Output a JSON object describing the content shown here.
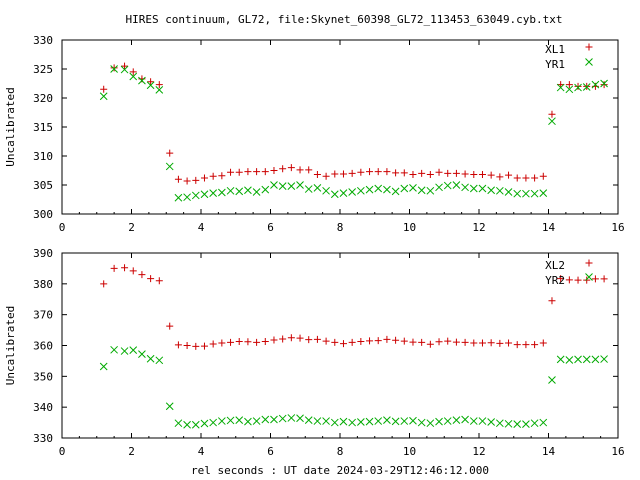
{
  "title": "HIRES continuum, GL72, file:Skynet_60398_GL72_113453_63049.cyb.txt",
  "xlabel": "rel seconds : UT date 2024-03-29T12:46:12.000",
  "colors": {
    "red": "#cc0000",
    "green": "#00aa00"
  },
  "chart_data": [
    {
      "type": "scatter",
      "ylabel": "Uncalibrated",
      "xlim": [
        0,
        16
      ],
      "ylim": [
        300,
        330
      ],
      "xticks": [
        0,
        2,
        4,
        6,
        8,
        10,
        12,
        14,
        16
      ],
      "yticks": [
        300,
        305,
        310,
        315,
        320,
        325,
        330
      ],
      "legend_position": "top-right",
      "series": [
        {
          "name": "XL1",
          "marker": "plus",
          "color": "#cc0000",
          "points": [
            [
              1.2,
              321.5
            ],
            [
              1.5,
              325.2
            ],
            [
              1.8,
              325.5
            ],
            [
              2.05,
              324.5
            ],
            [
              2.3,
              323.3
            ],
            [
              2.55,
              322.8
            ],
            [
              2.8,
              322.3
            ],
            [
              3.1,
              310.5
            ],
            [
              3.35,
              306.0
            ],
            [
              3.6,
              305.7
            ],
            [
              3.85,
              305.8
            ],
            [
              4.1,
              306.2
            ],
            [
              4.35,
              306.5
            ],
            [
              4.6,
              306.6
            ],
            [
              4.85,
              307.2
            ],
            [
              5.1,
              307.2
            ],
            [
              5.35,
              307.3
            ],
            [
              5.6,
              307.3
            ],
            [
              5.85,
              307.3
            ],
            [
              6.1,
              307.5
            ],
            [
              6.35,
              307.8
            ],
            [
              6.6,
              308.0
            ],
            [
              6.85,
              307.6
            ],
            [
              7.1,
              307.6
            ],
            [
              7.35,
              306.8
            ],
            [
              7.6,
              306.5
            ],
            [
              7.85,
              306.9
            ],
            [
              8.1,
              306.9
            ],
            [
              8.35,
              307.0
            ],
            [
              8.6,
              307.2
            ],
            [
              8.85,
              307.3
            ],
            [
              9.1,
              307.3
            ],
            [
              9.35,
              307.3
            ],
            [
              9.6,
              307.1
            ],
            [
              9.85,
              307.1
            ],
            [
              10.1,
              306.8
            ],
            [
              10.35,
              307.0
            ],
            [
              10.6,
              306.8
            ],
            [
              10.85,
              307.2
            ],
            [
              11.1,
              307.0
            ],
            [
              11.35,
              307.0
            ],
            [
              11.6,
              306.9
            ],
            [
              11.85,
              306.8
            ],
            [
              12.1,
              306.8
            ],
            [
              12.35,
              306.7
            ],
            [
              12.6,
              306.4
            ],
            [
              12.85,
              306.7
            ],
            [
              13.1,
              306.2
            ],
            [
              13.35,
              306.2
            ],
            [
              13.6,
              306.2
            ],
            [
              13.85,
              306.5
            ],
            [
              14.1,
              317.2
            ],
            [
              14.35,
              322.3
            ],
            [
              14.6,
              322.3
            ],
            [
              14.85,
              322.0
            ],
            [
              15.1,
              322.0
            ],
            [
              15.35,
              322.0
            ],
            [
              15.6,
              322.3
            ]
          ]
        },
        {
          "name": "YR1",
          "marker": "cross",
          "color": "#00aa00",
          "points": [
            [
              1.2,
              320.3
            ],
            [
              1.5,
              325.0
            ],
            [
              1.8,
              324.9
            ],
            [
              2.05,
              323.7
            ],
            [
              2.3,
              323.0
            ],
            [
              2.55,
              322.2
            ],
            [
              2.8,
              321.4
            ],
            [
              3.1,
              308.2
            ],
            [
              3.35,
              302.8
            ],
            [
              3.6,
              302.9
            ],
            [
              3.85,
              303.2
            ],
            [
              4.1,
              303.4
            ],
            [
              4.35,
              303.6
            ],
            [
              4.6,
              303.7
            ],
            [
              4.85,
              304.0
            ],
            [
              5.1,
              303.9
            ],
            [
              5.35,
              304.1
            ],
            [
              5.6,
              303.8
            ],
            [
              5.85,
              304.2
            ],
            [
              6.1,
              305.0
            ],
            [
              6.35,
              304.8
            ],
            [
              6.6,
              304.8
            ],
            [
              6.85,
              305.0
            ],
            [
              7.1,
              304.3
            ],
            [
              7.35,
              304.5
            ],
            [
              7.6,
              304.0
            ],
            [
              7.85,
              303.4
            ],
            [
              8.1,
              303.6
            ],
            [
              8.35,
              303.8
            ],
            [
              8.6,
              304.0
            ],
            [
              8.85,
              304.2
            ],
            [
              9.1,
              304.4
            ],
            [
              9.35,
              304.2
            ],
            [
              9.6,
              303.9
            ],
            [
              9.85,
              304.4
            ],
            [
              10.1,
              304.5
            ],
            [
              10.35,
              304.1
            ],
            [
              10.6,
              304.0
            ],
            [
              10.85,
              304.6
            ],
            [
              11.1,
              304.9
            ],
            [
              11.35,
              305.0
            ],
            [
              11.6,
              304.6
            ],
            [
              11.85,
              304.4
            ],
            [
              12.1,
              304.4
            ],
            [
              12.35,
              304.1
            ],
            [
              12.6,
              304.0
            ],
            [
              12.85,
              303.8
            ],
            [
              13.1,
              303.5
            ],
            [
              13.35,
              303.5
            ],
            [
              13.6,
              303.5
            ],
            [
              13.85,
              303.6
            ],
            [
              14.1,
              316.0
            ],
            [
              14.35,
              321.8
            ],
            [
              14.6,
              321.5
            ],
            [
              14.85,
              321.8
            ],
            [
              15.1,
              321.9
            ],
            [
              15.35,
              322.3
            ],
            [
              15.6,
              322.5
            ]
          ]
        }
      ]
    },
    {
      "type": "scatter",
      "ylabel": "Uncalibrated",
      "xlim": [
        0,
        16
      ],
      "ylim": [
        330,
        390
      ],
      "xticks": [
        0,
        2,
        4,
        6,
        8,
        10,
        12,
        14,
        16
      ],
      "yticks": [
        330,
        340,
        350,
        360,
        370,
        380,
        390
      ],
      "legend_position": "top-right",
      "series": [
        {
          "name": "XL2",
          "marker": "plus",
          "color": "#cc0000",
          "points": [
            [
              1.2,
              380.0
            ],
            [
              1.5,
              385.0
            ],
            [
              1.8,
              385.2
            ],
            [
              2.05,
              384.2
            ],
            [
              2.3,
              383.0
            ],
            [
              2.55,
              381.7
            ],
            [
              2.8,
              381.0
            ],
            [
              3.1,
              366.3
            ],
            [
              3.35,
              360.2
            ],
            [
              3.6,
              360.0
            ],
            [
              3.85,
              359.7
            ],
            [
              4.1,
              359.8
            ],
            [
              4.35,
              360.5
            ],
            [
              4.6,
              360.8
            ],
            [
              4.85,
              361.0
            ],
            [
              5.1,
              361.3
            ],
            [
              5.35,
              361.2
            ],
            [
              5.6,
              361.0
            ],
            [
              5.85,
              361.3
            ],
            [
              6.1,
              361.8
            ],
            [
              6.35,
              362.1
            ],
            [
              6.6,
              362.5
            ],
            [
              6.85,
              362.4
            ],
            [
              7.1,
              361.9
            ],
            [
              7.35,
              362.0
            ],
            [
              7.6,
              361.4
            ],
            [
              7.85,
              361.0
            ],
            [
              8.1,
              360.6
            ],
            [
              8.35,
              361.0
            ],
            [
              8.6,
              361.3
            ],
            [
              8.85,
              361.5
            ],
            [
              9.1,
              361.6
            ],
            [
              9.35,
              362.0
            ],
            [
              9.6,
              361.7
            ],
            [
              9.85,
              361.4
            ],
            [
              10.1,
              361.1
            ],
            [
              10.35,
              361.0
            ],
            [
              10.6,
              360.4
            ],
            [
              10.85,
              361.2
            ],
            [
              11.1,
              361.4
            ],
            [
              11.35,
              361.1
            ],
            [
              11.6,
              361.0
            ],
            [
              11.85,
              360.8
            ],
            [
              12.1,
              360.8
            ],
            [
              12.35,
              360.9
            ],
            [
              12.6,
              360.7
            ],
            [
              12.85,
              360.8
            ],
            [
              13.1,
              360.3
            ],
            [
              13.35,
              360.3
            ],
            [
              13.6,
              360.3
            ],
            [
              13.85,
              360.8
            ],
            [
              14.1,
              374.5
            ],
            [
              14.35,
              381.7
            ],
            [
              14.6,
              381.3
            ],
            [
              14.85,
              381.2
            ],
            [
              15.1,
              381.2
            ],
            [
              15.35,
              381.6
            ],
            [
              15.6,
              381.6
            ]
          ]
        },
        {
          "name": "YR2",
          "marker": "cross",
          "color": "#00aa00",
          "points": [
            [
              1.2,
              353.2
            ],
            [
              1.5,
              358.6
            ],
            [
              1.8,
              358.2
            ],
            [
              2.05,
              358.5
            ],
            [
              2.3,
              357.2
            ],
            [
              2.55,
              355.7
            ],
            [
              2.8,
              355.2
            ],
            [
              3.1,
              340.3
            ],
            [
              3.35,
              334.8
            ],
            [
              3.6,
              334.3
            ],
            [
              3.85,
              334.3
            ],
            [
              4.1,
              334.7
            ],
            [
              4.35,
              335.0
            ],
            [
              4.6,
              335.5
            ],
            [
              4.85,
              335.7
            ],
            [
              5.1,
              335.8
            ],
            [
              5.35,
              335.3
            ],
            [
              5.6,
              335.5
            ],
            [
              5.85,
              336.0
            ],
            [
              6.1,
              336.0
            ],
            [
              6.35,
              336.3
            ],
            [
              6.6,
              336.5
            ],
            [
              6.85,
              336.4
            ],
            [
              7.1,
              335.8
            ],
            [
              7.35,
              335.5
            ],
            [
              7.6,
              335.5
            ],
            [
              7.85,
              335.0
            ],
            [
              8.1,
              335.3
            ],
            [
              8.35,
              335.0
            ],
            [
              8.6,
              335.2
            ],
            [
              8.85,
              335.3
            ],
            [
              9.1,
              335.5
            ],
            [
              9.35,
              335.8
            ],
            [
              9.6,
              335.4
            ],
            [
              9.85,
              335.5
            ],
            [
              10.1,
              335.6
            ],
            [
              10.35,
              335.0
            ],
            [
              10.6,
              334.8
            ],
            [
              10.85,
              335.3
            ],
            [
              11.1,
              335.5
            ],
            [
              11.35,
              335.8
            ],
            [
              11.6,
              336.0
            ],
            [
              11.85,
              335.5
            ],
            [
              12.1,
              335.5
            ],
            [
              12.35,
              335.2
            ],
            [
              12.6,
              334.8
            ],
            [
              12.85,
              334.6
            ],
            [
              13.1,
              334.5
            ],
            [
              13.35,
              334.5
            ],
            [
              13.6,
              334.8
            ],
            [
              13.85,
              335.0
            ],
            [
              14.1,
              348.8
            ],
            [
              14.35,
              355.5
            ],
            [
              14.6,
              355.3
            ],
            [
              14.85,
              355.5
            ],
            [
              15.1,
              355.5
            ],
            [
              15.35,
              355.5
            ],
            [
              15.6,
              355.6
            ]
          ]
        }
      ]
    }
  ]
}
